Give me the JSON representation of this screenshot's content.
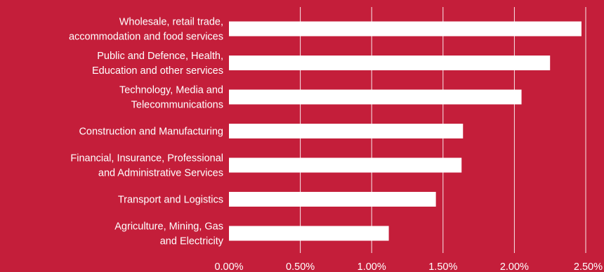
{
  "colors": {
    "background": "#c41e3a",
    "bar": "#ffffff",
    "text": "#ffffff",
    "grid": "#ffffff"
  },
  "chart_data": {
    "type": "bar",
    "orientation": "horizontal",
    "categories": [
      [
        "Wholesale, retail trade,",
        "accommodation and food services"
      ],
      [
        "Public and Defence, Health,",
        "Education and other services"
      ],
      [
        "Technology, Media and",
        "Telecommunications"
      ],
      [
        "Construction and Manufacturing"
      ],
      [
        "Financial, Insurance, Professional",
        "and Administrative Services"
      ],
      [
        "Transport and Logistics"
      ],
      [
        "Agriculture, Mining, Gas",
        "and Electricity"
      ]
    ],
    "values": [
      2.47,
      2.25,
      2.05,
      1.64,
      1.63,
      1.45,
      1.12
    ],
    "x_ticks": [
      0,
      0.5,
      1.0,
      1.5,
      2.0,
      2.5
    ],
    "x_tick_labels": [
      "0.00%",
      "0.50%",
      "1.00%",
      "1.50%",
      "2.00%",
      "2.50%"
    ],
    "xlim": [
      0,
      2.5
    ],
    "grid": true,
    "title": "",
    "xlabel": "",
    "ylabel": ""
  }
}
